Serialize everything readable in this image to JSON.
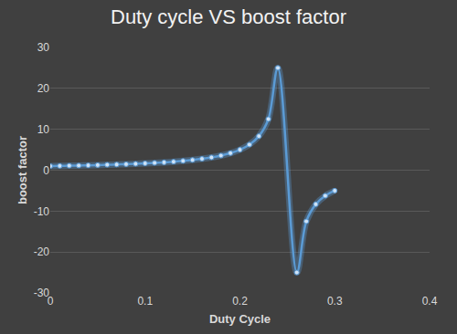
{
  "chart_data": {
    "type": "line",
    "title": "Duty cycle VS boost factor",
    "x_label": "Duty Cycle",
    "y_label": "boost factor",
    "x": [
      0,
      0.01,
      0.02,
      0.03,
      0.04,
      0.05,
      0.06,
      0.07,
      0.08,
      0.09,
      0.1,
      0.11,
      0.12,
      0.13,
      0.14,
      0.15,
      0.16,
      0.17,
      0.18,
      0.19,
      0.2,
      0.21,
      0.22,
      0.23,
      0.24,
      0.26,
      0.27,
      0.28,
      0.29,
      0.3
    ],
    "values": [
      1,
      1.04,
      1.09,
      1.14,
      1.19,
      1.25,
      1.32,
      1.39,
      1.47,
      1.56,
      1.67,
      1.79,
      1.92,
      2.08,
      2.27,
      2.5,
      2.78,
      3.13,
      3.57,
      4.17,
      5,
      6.25,
      8.33,
      12.5,
      25,
      -25,
      -12.5,
      -8.33,
      -6.25,
      -5
    ],
    "color": "#5b9bd5",
    "marker": "circle",
    "line_style": "smooth",
    "xlim": [
      0,
      0.4
    ],
    "xticks": [
      0,
      0.1,
      0.2,
      0.3,
      0.4
    ],
    "ylim": [
      -30,
      30
    ],
    "yticks": [
      -30,
      -20,
      -10,
      0,
      10,
      20,
      30
    ],
    "grid": true
  }
}
